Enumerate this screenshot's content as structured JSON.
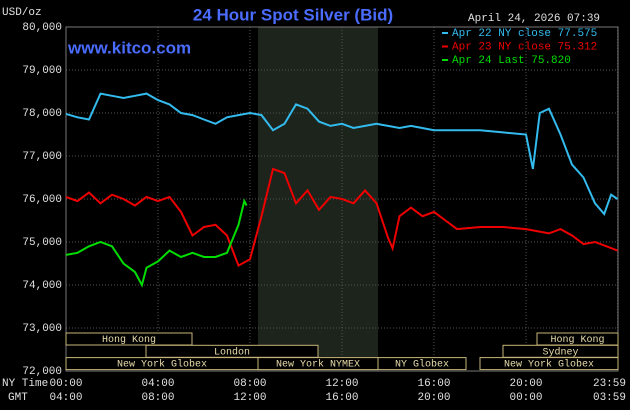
{
  "chart_data": {
    "type": "line",
    "title": "24 Hour Spot Silver (Bid)",
    "date": "April 24, 2026 07:39",
    "site": "www.kitco.com",
    "y_unit": "USD/oz",
    "x_label": "NY Time",
    "x2_label": "GMT",
    "xlim": [
      0,
      24
    ],
    "xticks": [
      {
        "value": 0,
        "label": "00:00"
      },
      {
        "value": 4,
        "label": "04:00"
      },
      {
        "value": 8,
        "label": "08:00"
      },
      {
        "value": 12,
        "label": "12:00"
      },
      {
        "value": 16,
        "label": "16:00"
      },
      {
        "value": 20,
        "label": "20:00"
      },
      {
        "value": 23.983,
        "label": "23:59"
      }
    ],
    "x2tick_labels": [
      "04:00",
      "08:00",
      "12:00",
      "16:00",
      "20:00",
      "00:00",
      "03:59"
    ],
    "ylim": [
      72,
      80
    ],
    "yticks": [
      {
        "value": 72,
        "label": "72,000"
      },
      {
        "value": 73,
        "label": "73,000"
      },
      {
        "value": 74,
        "label": "74,000"
      },
      {
        "value": 75,
        "label": "75,000"
      },
      {
        "value": 76,
        "label": "76,000"
      },
      {
        "value": 77,
        "label": "77,000"
      },
      {
        "value": 78,
        "label": "78,000"
      },
      {
        "value": 79,
        "label": "79,000"
      },
      {
        "value": 80,
        "label": "80,000"
      }
    ],
    "grid": true,
    "sessions": [
      "Hong Kong",
      "London",
      "New York Globex",
      "New York NYMEX",
      "NY Globex",
      "Hong Kong",
      "Sydney",
      "New York Globex"
    ],
    "series": [
      {
        "name": "Apr 22 NY close",
        "legend_value": {
          "value": 77.575,
          "label": "77.575"
        },
        "color": "#33bbee",
        "x": [
          0,
          0.5,
          1,
          1.5,
          2,
          2.5,
          3,
          3.5,
          4,
          4.5,
          5,
          5.5,
          6,
          6.5,
          7,
          7.5,
          8,
          8.5,
          9,
          9.5,
          10,
          10.5,
          11,
          11.5,
          12,
          12.5,
          13,
          13.5,
          14,
          14.5,
          15,
          16,
          17,
          18,
          19,
          20,
          20.3,
          20.6,
          21,
          21.5,
          22,
          22.5,
          23,
          23.4,
          23.7,
          23.98
        ],
        "values": [
          77.98,
          77.9,
          77.85,
          78.45,
          78.4,
          78.35,
          78.4,
          78.45,
          78.3,
          78.2,
          78.0,
          77.95,
          77.85,
          77.75,
          77.9,
          77.95,
          78.0,
          77.95,
          77.6,
          77.75,
          78.2,
          78.1,
          77.8,
          77.7,
          77.75,
          77.65,
          77.7,
          77.75,
          77.7,
          77.65,
          77.7,
          77.6,
          77.6,
          77.6,
          77.55,
          77.5,
          76.7,
          78.0,
          78.1,
          77.5,
          76.8,
          76.5,
          75.9,
          75.65,
          76.1,
          76.0
        ]
      },
      {
        "name": "Apr 23 NY close",
        "legend_value": {
          "value": 75.312,
          "label": "75.312"
        },
        "color": "#ee0000",
        "x": [
          0,
          0.5,
          1,
          1.5,
          2,
          2.5,
          3,
          3.5,
          4,
          4.5,
          5,
          5.5,
          6,
          6.5,
          7,
          7.5,
          8,
          8.5,
          9,
          9.5,
          10,
          10.5,
          11,
          11.5,
          12,
          12.5,
          13,
          13.5,
          14,
          14.2,
          14.5,
          15,
          15.5,
          16,
          16.5,
          17,
          18,
          19,
          20,
          21,
          21.5,
          22,
          22.5,
          23,
          23.5,
          23.98
        ],
        "values": [
          76.05,
          75.95,
          76.15,
          75.9,
          76.1,
          76.0,
          75.85,
          76.05,
          75.95,
          76.05,
          75.7,
          75.15,
          75.35,
          75.4,
          75.15,
          74.45,
          74.6,
          75.6,
          76.7,
          76.6,
          75.9,
          76.2,
          75.75,
          76.05,
          76.0,
          75.9,
          76.2,
          75.9,
          75.1,
          74.85,
          75.6,
          75.8,
          75.6,
          75.7,
          75.5,
          75.3,
          75.35,
          75.35,
          75.3,
          75.2,
          75.3,
          75.15,
          74.95,
          75.0,
          74.9,
          74.8
        ]
      },
      {
        "name": "Apr 24 Last",
        "legend_value": {
          "value": 75.82,
          "label": "75.820"
        },
        "color": "#00dd00",
        "x": [
          0,
          0.5,
          1,
          1.5,
          2,
          2.5,
          3,
          3.3,
          3.5,
          4,
          4.5,
          5,
          5.5,
          6,
          6.5,
          7,
          7.5,
          7.75,
          7.85
        ],
        "values": [
          74.7,
          74.75,
          74.9,
          75.0,
          74.9,
          74.5,
          74.3,
          74.0,
          74.4,
          74.55,
          74.8,
          74.65,
          74.75,
          74.65,
          74.65,
          74.75,
          75.4,
          75.95,
          75.85
        ]
      }
    ]
  }
}
